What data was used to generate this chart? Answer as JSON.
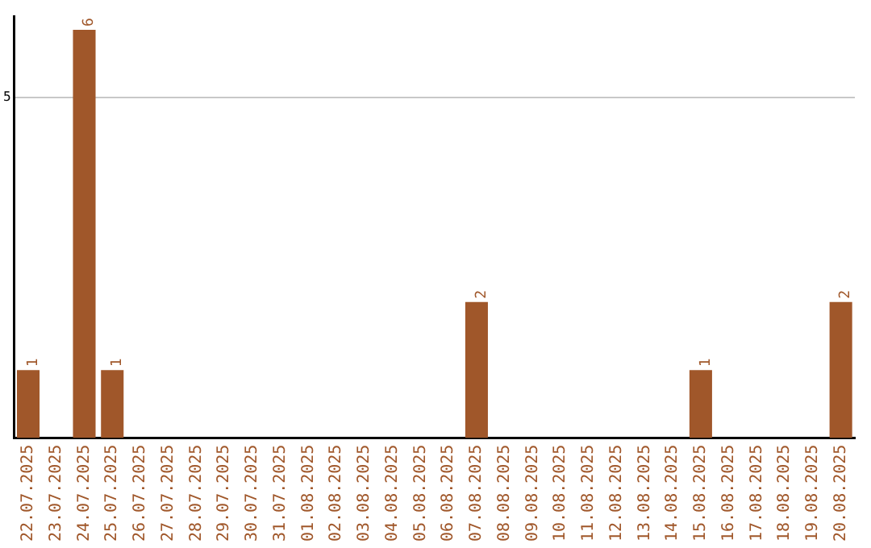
{
  "chart_data": {
    "type": "bar",
    "categories": [
      "22.07.2025",
      "23.07.2025",
      "24.07.2025",
      "25.07.2025",
      "26.07.2025",
      "27.07.2025",
      "28.07.2025",
      "29.07.2025",
      "30.07.2025",
      "31.07.2025",
      "01.08.2025",
      "02.08.2025",
      "03.08.2025",
      "04.08.2025",
      "05.08.2025",
      "06.08.2025",
      "07.08.2025",
      "08.08.2025",
      "09.08.2025",
      "10.08.2025",
      "11.08.2025",
      "12.08.2025",
      "13.08.2025",
      "14.08.2025",
      "15.08.2025",
      "16.08.2025",
      "17.08.2025",
      "18.08.2025",
      "19.08.2025",
      "20.08.2025"
    ],
    "values": [
      1,
      0,
      6,
      1,
      0,
      0,
      0,
      0,
      0,
      0,
      0,
      0,
      0,
      0,
      0,
      0,
      2,
      0,
      0,
      0,
      0,
      0,
      0,
      0,
      1,
      0,
      0,
      0,
      0,
      2
    ],
    "value_labels": [
      "1",
      null,
      "6",
      "1",
      null,
      null,
      null,
      null,
      null,
      null,
      null,
      null,
      null,
      null,
      null,
      null,
      "2",
      null,
      null,
      null,
      null,
      null,
      null,
      null,
      "1",
      null,
      null,
      null,
      null,
      "2"
    ],
    "color": "#a0572a",
    "ylim": [
      0,
      6.2
    ],
    "yticks": [
      5
    ],
    "grid": "y",
    "legend": false
  }
}
